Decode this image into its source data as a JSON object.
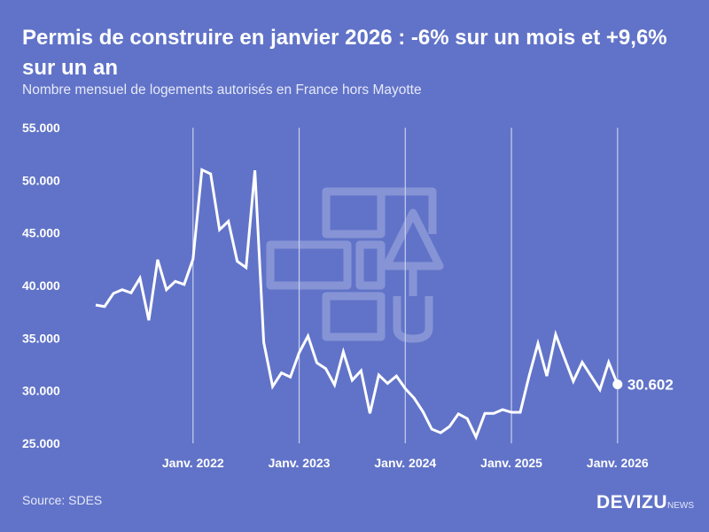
{
  "header": {
    "title": "Permis de construire en janvier 2026 : -6% sur un mois et +9,6% sur un an",
    "subtitle": "Nombre mensuel de logements autorisés en France hors Mayotte"
  },
  "footer": {
    "source": "Source: SDES",
    "logo_main": "DEVIZU",
    "logo_suffix": "NEWS"
  },
  "colors": {
    "background": "#6173c8",
    "line": "#ffffff",
    "grid": "#c9cfee"
  },
  "chart_data": {
    "type": "line",
    "title": "Permis de construire en janvier 2026 : -6% sur un mois et +9,6% sur un an",
    "ylabel": "Nombre mensuel de logements autorisés",
    "ylim": [
      25000,
      55000
    ],
    "yticks": [
      55000,
      50000,
      45000,
      40000,
      35000,
      30000,
      25000
    ],
    "ytick_labels": [
      "55.000",
      "50.000",
      "45.000",
      "40.000",
      "35.000",
      "30.000",
      "25.000"
    ],
    "xtick_labels": [
      "Janv. 2022",
      "Janv. 2023",
      "Janv. 2024",
      "Janv. 2025",
      "Janv. 2026"
    ],
    "xtick_month_index": [
      11,
      23,
      35,
      47,
      59
    ],
    "start_month": "2021-02",
    "end_label": "30.602",
    "series": [
      {
        "name": "Logements autorisés",
        "values": [
          38150,
          38000,
          39250,
          39600,
          39300,
          40700,
          36700,
          42450,
          39600,
          40400,
          40100,
          42500,
          51000,
          50600,
          45300,
          46100,
          42300,
          41700,
          50950,
          34600,
          30400,
          31700,
          31300,
          33600,
          35200,
          32650,
          32100,
          30550,
          33700,
          31000,
          31900,
          27850,
          31500,
          30700,
          31400,
          30200,
          29300,
          28000,
          26350,
          26000,
          26600,
          27800,
          27350,
          25600,
          27850,
          27850,
          28200,
          27950,
          27950,
          31400,
          34500,
          31400,
          35350,
          33100,
          30900,
          32700,
          31400,
          30100,
          32700,
          30602
        ]
      }
    ]
  }
}
